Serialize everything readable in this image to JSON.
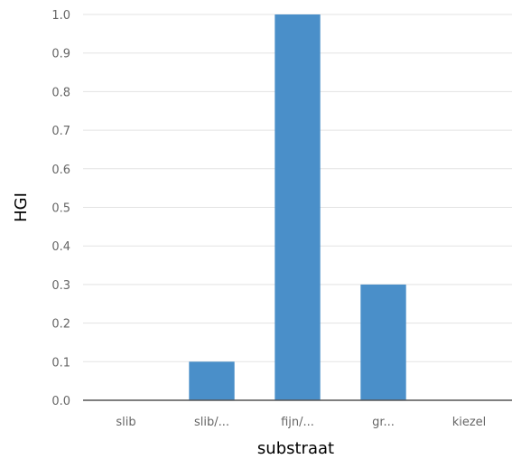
{
  "chart_data": {
    "type": "bar",
    "categories": [
      "slib",
      "slib/...",
      "fijn/...",
      "gr...",
      "kiezel"
    ],
    "values": [
      0.0,
      0.1,
      1.0,
      0.3,
      0.0
    ],
    "xlabel": "substraat",
    "ylabel": "HGI",
    "ylim": [
      0.0,
      1.0
    ],
    "yticks": [
      "0.0",
      "0.1",
      "0.2",
      "0.3",
      "0.4",
      "0.5",
      "0.6",
      "0.7",
      "0.8",
      "0.9",
      "1.0"
    ],
    "grid": true,
    "legend": "none",
    "colors": {
      "bar": "#4a8fc9",
      "grid": "#e3e3e3",
      "tick_text": "#666666"
    }
  }
}
